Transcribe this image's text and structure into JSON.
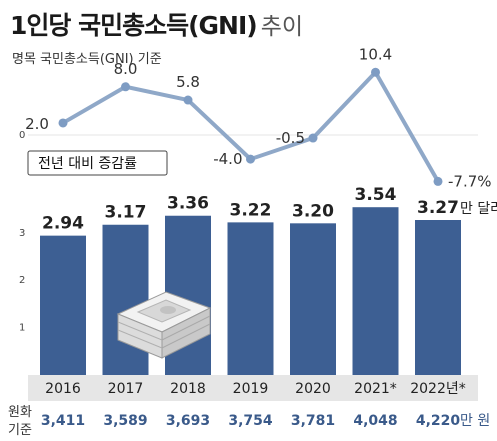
{
  "title": "1인당 국민총소득(GNI)",
  "title_suffix": "추이",
  "subtitle": "명목 국민총소득(GNI) 기준",
  "growth_legend": "전년 대비 증감률",
  "bar_unit": "만 달러",
  "krw_side_label_1": "원화",
  "krw_side_label_2": "기준",
  "krw_unit": "만 원",
  "colors": {
    "bar": "#3d5f93",
    "line": "#8fa8c8",
    "marker": "#7e9cc3",
    "krw_text": "#3a5a8a",
    "band": "#e6e6e6"
  },
  "chart_data": [
    {
      "type": "line",
      "title": "",
      "categories": [
        "2016",
        "2017",
        "2018",
        "2019",
        "2020",
        "2021*",
        "2022년*"
      ],
      "series": [
        {
          "values": [
            2.0,
            8.0,
            5.8,
            -4.0,
            -0.5,
            10.4,
            -7.7
          ],
          "labels": [
            "2.0",
            "8.0",
            "5.8",
            "-4.0",
            "-0.5",
            "10.4",
            "-7.7%"
          ]
        }
      ],
      "yticks": [
        "0"
      ],
      "ylim": [
        -10,
        12
      ]
    },
    {
      "type": "bar",
      "categories": [
        "2016",
        "2017",
        "2018",
        "2019",
        "2020",
        "2021*",
        "2022년*"
      ],
      "series": [
        {
          "values": [
            2.94,
            3.17,
            3.36,
            3.22,
            3.2,
            3.54,
            3.27
          ],
          "labels": [
            "2.94",
            "3.17",
            "3.36",
            "3.22",
            "3.20",
            "3.54",
            "3.27"
          ]
        }
      ],
      "yticks": [
        "1",
        "2",
        "3"
      ],
      "ylim": [
        0,
        3.6
      ]
    },
    {
      "type": "table",
      "row_label": "원화 기준",
      "categories": [
        "2016",
        "2017",
        "2018",
        "2019",
        "2020",
        "2021*",
        "2022년*"
      ],
      "values": [
        "3,411",
        "3,589",
        "3,693",
        "3,754",
        "3,781",
        "4,048",
        "4,220"
      ]
    }
  ]
}
